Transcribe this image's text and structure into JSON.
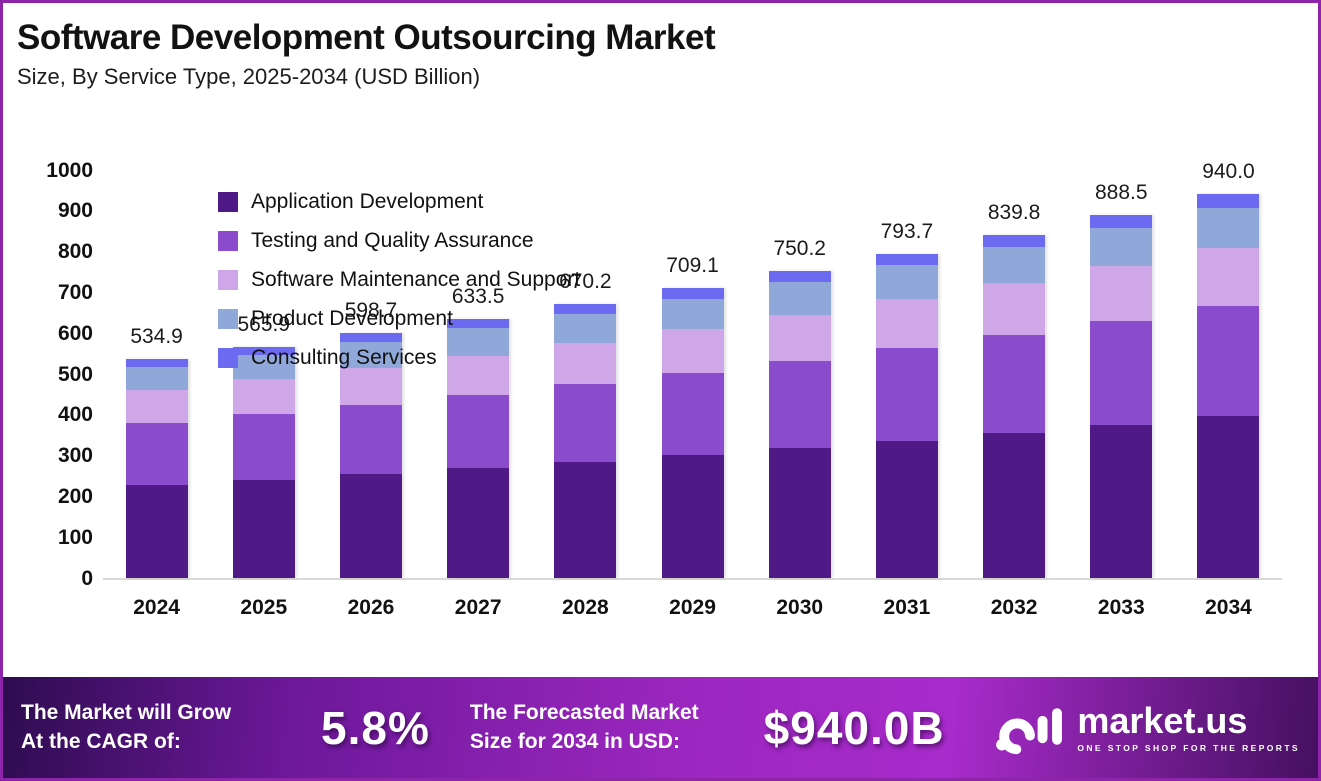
{
  "page": {
    "title": "Software Development Outsourcing Market",
    "subtitle": "Size, By Service Type, 2025-2034 (USD Billion)"
  },
  "chart_data": {
    "type": "bar",
    "stacked": true,
    "title": "Software Development Outsourcing Market Size, By Service Type, 2025-2034 (USD Billion)",
    "categories": [
      "2024",
      "2025",
      "2026",
      "2027",
      "2028",
      "2029",
      "2030",
      "2031",
      "2032",
      "2033",
      "2034"
    ],
    "totals": [
      534.9,
      565.9,
      598.7,
      633.5,
      670.2,
      709.1,
      750.2,
      793.7,
      839.8,
      888.5,
      940.0
    ],
    "series": [
      {
        "name": "Application Development",
        "color": "#4f1a85",
        "values": [
          225.7,
          238.8,
          252.7,
          267.3,
          282.8,
          299.2,
          316.6,
          334.9,
          354.4,
          374.9,
          396.7
        ]
      },
      {
        "name": "Testing and Quality Assurance",
        "color": "#8a4ccd",
        "values": [
          153.0,
          161.8,
          171.2,
          181.2,
          191.7,
          202.8,
          214.6,
          227.0,
          240.2,
          254.1,
          268.8
        ]
      },
      {
        "name": "Software Maintenance and Support",
        "color": "#cfa6e8",
        "values": [
          80.8,
          85.5,
          90.4,
          95.7,
          101.2,
          107.1,
          113.3,
          119.8,
          126.8,
          134.2,
          141.9
        ]
      },
      {
        "name": "Product Development",
        "color": "#90a8d9",
        "values": [
          56.2,
          59.4,
          62.9,
          66.5,
          70.4,
          74.5,
          78.8,
          83.3,
          88.2,
          93.3,
          98.7
        ]
      },
      {
        "name": "Consulting Services",
        "color": "#6c6af0",
        "values": [
          19.2,
          20.4,
          21.5,
          22.8,
          24.1,
          25.5,
          26.9,
          28.7,
          30.2,
          32.0,
          33.9
        ]
      }
    ],
    "ylim": [
      0,
      1000
    ],
    "yticks": [
      0,
      100,
      200,
      300,
      400,
      500,
      600,
      700,
      800,
      900,
      1000
    ],
    "grid": false,
    "legend_position": "top-left"
  },
  "banner": {
    "cagr_line1": "The Market will Grow",
    "cagr_line2": "At the CAGR of:",
    "cagr_value": "5.8%",
    "forecast_line1": "The Forecasted Market",
    "forecast_line2": "Size for 2034 in USD:",
    "forecast_value": "$940.0B",
    "logo_text": "market.us",
    "logo_tagline": "ONE STOP SHOP FOR THE REPORTS"
  },
  "colors": {
    "frame_border": "#8e24aa",
    "axis_line": "#d9d9d9",
    "banner_gradient_start": "#2e0c50",
    "banner_gradient_mid": "#a82bcb",
    "banner_gradient_end": "#451060"
  }
}
